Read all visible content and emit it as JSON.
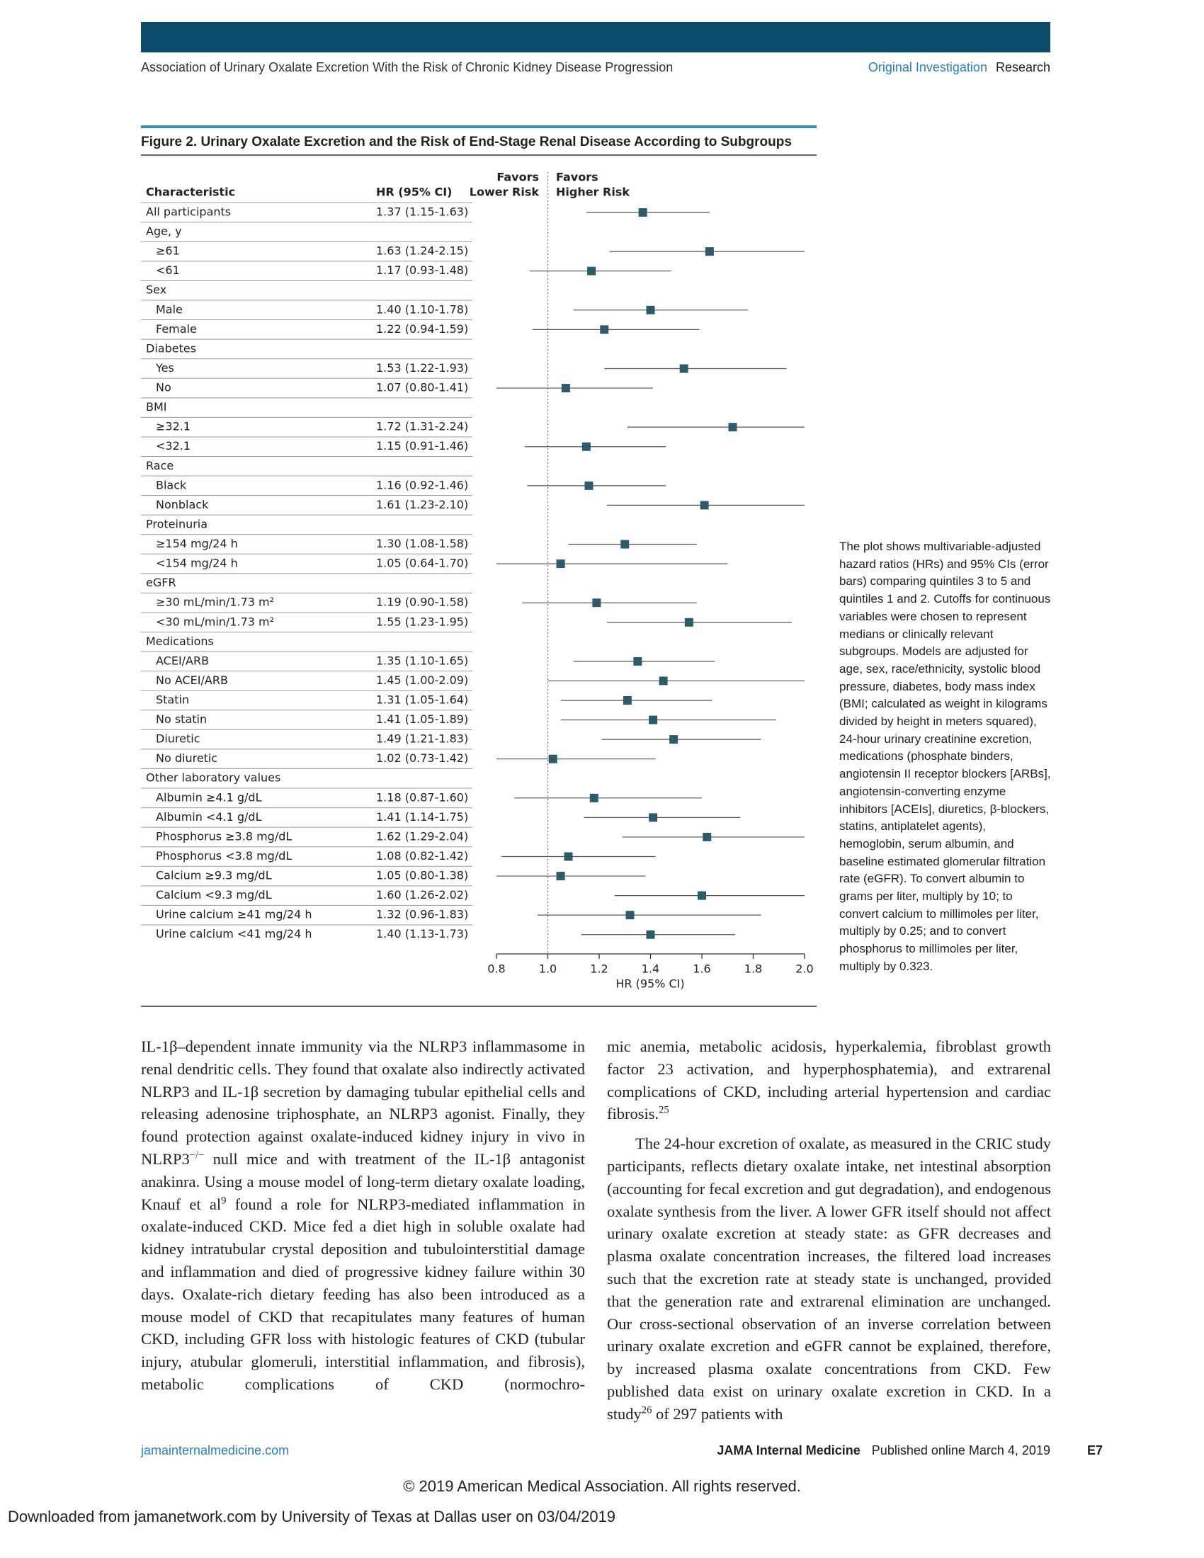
{
  "header": {
    "running_title": "Association of Urinary Oxalate Excretion With the Risk of Chronic Kidney Disease Progression",
    "section": "Original Investigation",
    "category": "Research"
  },
  "chart_data": {
    "type": "forest",
    "title": "Figure 2. Urinary Oxalate Excretion and the Risk of End-Stage Renal Disease According to Subgroups",
    "column_headers": [
      "Characteristic",
      "HR (95% CI)"
    ],
    "favors_labels": [
      [
        "Favors",
        "Lower Risk"
      ],
      [
        "Favors",
        "Higher Risk"
      ]
    ],
    "categories": [
      "All participants",
      "Age, y",
      "≥61",
      "<61",
      "Sex",
      "Male",
      "Female",
      "Diabetes",
      "Yes",
      "No",
      "BMI",
      "≥32.1",
      "<32.1",
      "Race",
      "Black",
      "Nonblack",
      "Proteinuria",
      "≥154 mg/24 h",
      "<154 mg/24 h",
      "eGFR",
      "≥30 mL/min/1.73 m²",
      "<30 mL/min/1.73 m²",
      "Medications",
      "ACEI/ARB",
      "No ACEI/ARB",
      "Statin",
      "No statin",
      "Diuretic",
      "No diuretic",
      "Other laboratory values",
      "Albumin ≥4.1 g/dL",
      "Albumin <4.1 g/dL",
      "Phosphorus ≥3.8 mg/dL",
      "Phosphorus <3.8 mg/dL",
      "Calcium ≥9.3 mg/dL",
      "Calcium <9.3 mg/dL",
      "Urine calcium ≥41 mg/24 h",
      "Urine calcium <41 mg/24 h"
    ],
    "values": [
      1.37,
      null,
      1.63,
      1.17,
      null,
      1.4,
      1.22,
      null,
      1.53,
      1.07,
      null,
      1.72,
      1.15,
      null,
      1.16,
      1.61,
      null,
      1.3,
      1.05,
      null,
      1.19,
      1.55,
      null,
      1.35,
      1.45,
      1.31,
      1.41,
      1.49,
      1.02,
      null,
      1.18,
      1.41,
      1.62,
      1.08,
      1.05,
      1.6,
      1.32,
      1.4
    ],
    "lower": [
      1.15,
      null,
      1.24,
      0.93,
      null,
      1.1,
      0.94,
      null,
      1.22,
      0.8,
      null,
      1.31,
      0.91,
      null,
      0.92,
      1.23,
      null,
      1.08,
      0.64,
      null,
      0.9,
      1.23,
      null,
      1.1,
      1.0,
      1.05,
      1.05,
      1.21,
      0.73,
      null,
      0.87,
      1.14,
      1.29,
      0.82,
      0.8,
      1.26,
      0.96,
      1.13
    ],
    "upper": [
      1.63,
      null,
      2.15,
      1.48,
      null,
      1.78,
      1.59,
      null,
      1.93,
      1.41,
      null,
      2.24,
      1.46,
      null,
      1.46,
      2.1,
      null,
      1.58,
      1.7,
      null,
      1.58,
      1.95,
      null,
      1.65,
      2.09,
      1.64,
      1.89,
      1.83,
      1.42,
      null,
      1.6,
      1.75,
      2.04,
      1.42,
      1.38,
      2.02,
      1.83,
      1.73
    ],
    "value_labels": [
      "1.37 (1.15-1.63)",
      null,
      "1.63 (1.24-2.15)",
      "1.17 (0.93-1.48)",
      null,
      "1.40 (1.10-1.78)",
      "1.22 (0.94-1.59)",
      null,
      "1.53 (1.22-1.93)",
      "1.07 (0.80-1.41)",
      null,
      "1.72 (1.31-2.24)",
      "1.15 (0.91-1.46)",
      null,
      "1.16 (0.92-1.46)",
      "1.61 (1.23-2.10)",
      null,
      "1.30 (1.08-1.58)",
      "1.05 (0.64-1.70)",
      null,
      "1.19 (0.90-1.58)",
      "1.55 (1.23-1.95)",
      null,
      "1.35 (1.10-1.65)",
      "1.45 (1.00-2.09)",
      "1.31 (1.05-1.64)",
      "1.41 (1.05-1.89)",
      "1.49 (1.21-1.83)",
      "1.02 (0.73-1.42)",
      null,
      "1.18 (0.87-1.60)",
      "1.41 (1.14-1.75)",
      "1.62 (1.29-2.04)",
      "1.08 (0.82-1.42)",
      "1.05 (0.80-1.38)",
      "1.60 (1.26-2.02)",
      "1.32 (0.96-1.83)",
      "1.40 (1.13-1.73)"
    ],
    "color": "#2e5b6a",
    "xlabel": "HR (95% CI)",
    "xlim": [
      0.8,
      2.0
    ],
    "xticks": [
      0.8,
      {
        "value": 1,
        "label": "1.0"
      },
      1.2,
      1.4,
      1.6,
      1.8,
      {
        "value": 2,
        "label": "2.0"
      }
    ],
    "reference": 1,
    "caption": "The plot shows multivariable-adjusted hazard ratios (HRs) and 95% CIs (error bars) comparing quintiles 3 to 5 and quintiles 1 and 2. Cutoffs for continuous variables were chosen to represent medians or clinically relevant subgroups. Models are adjusted for age, sex, race/ethnicity, systolic blood pressure, diabetes, body mass index (BMI; calculated as weight in kilograms divided by height in meters squared), 24-hour urinary creatinine excretion, medications (phosphate binders, angiotensin II receptor blockers [ARBs], angiotensin-converting enzyme inhibitors [ACEIs], diuretics, β-blockers, statins, antiplatelet agents), hemoglobin, serum albumin, and baseline estimated glomerular filtration rate (eGFR). To convert albumin to grams per liter, multiply by 10; to convert calcium to millimoles per liter, multiply by 0.25; and to convert phosphorus to millimoles per liter, multiply by 0.323."
  },
  "body": {
    "columns": [
      {
        "paragraphs": [
          [
            "IL-1β–dependent innate immunity via the NLRP3 inflammasome in renal dendritic cells. They found that oxalate also indirectly activated NLRP3 and IL-1β secretion by damaging tubular epithelial cells and releasing adenosine triphosphate, an NLRP3 agonist. Finally, they found protection against oxalate-induced kidney injury in vivo in NLRP3",
            {
              "sup": "−/−"
            },
            " null mice and with treatment of the IL-1β antagonist anakinra. Using a mouse model of long-term dietary oxalate loading, Knauf et al",
            {
              "sup": "9"
            },
            " found a role for NLRP3-mediated inflammation in oxalate-induced CKD. Mice fed a diet high in soluble oxalate had kidney intratubular crystal deposition and tubulointerstitial damage and inflammation and died of progressive kidney failure within 30 days. Oxalate-rich dietary feeding has also been introduced as a mouse model of CKD that recapitulates many features of human CKD, including GFR loss with histologic features of CKD (tubular injury, atubular glomeruli, interstitial inflammation, and fibrosis), metabolic complications of CKD (normochro-"
          ]
        ]
      },
      {
        "paragraphs": [
          [
            "mic anemia, metabolic acidosis, hyperkalemia, fibroblast growth factor 23 activation, and hyperphosphatemia), and extrarenal complications of CKD, including arterial hypertension and cardiac fibrosis.",
            {
              "sup": "25"
            }
          ],
          [
            "The 24-hour excretion of oxalate, as measured in the CRIC study participants, reflects dietary oxalate intake, net intestinal absorption (accounting for fecal excretion and gut degradation), and endogenous oxalate synthesis from the liver. A lower GFR itself should not affect urinary oxalate excretion at steady state: as GFR decreases and plasma oxalate concentration increases, the filtered load increases such that the excretion rate at steady state is unchanged, provided that the generation rate and extrarenal elimination are unchanged. Our cross-sectional observation of an inverse correlation between urinary oxalate excretion and eGFR cannot be explained, therefore, by increased plasma oxalate concentrations from CKD. Few published data exist on urinary oxalate excretion in CKD. In a study",
            {
              "sup": "26"
            },
            " of 297 patients with"
          ]
        ]
      }
    ]
  },
  "footer": {
    "website": "jamainternalmedicine.com",
    "journal": "JAMA Internal Medicine",
    "published": "Published online March 4, 2019",
    "page": "E7",
    "copyright": "© 2019 American Medical Association. All rights reserved.",
    "download": "Downloaded from jamanetwork.com by University of Texas at Dallas user on 03/04/2019"
  }
}
